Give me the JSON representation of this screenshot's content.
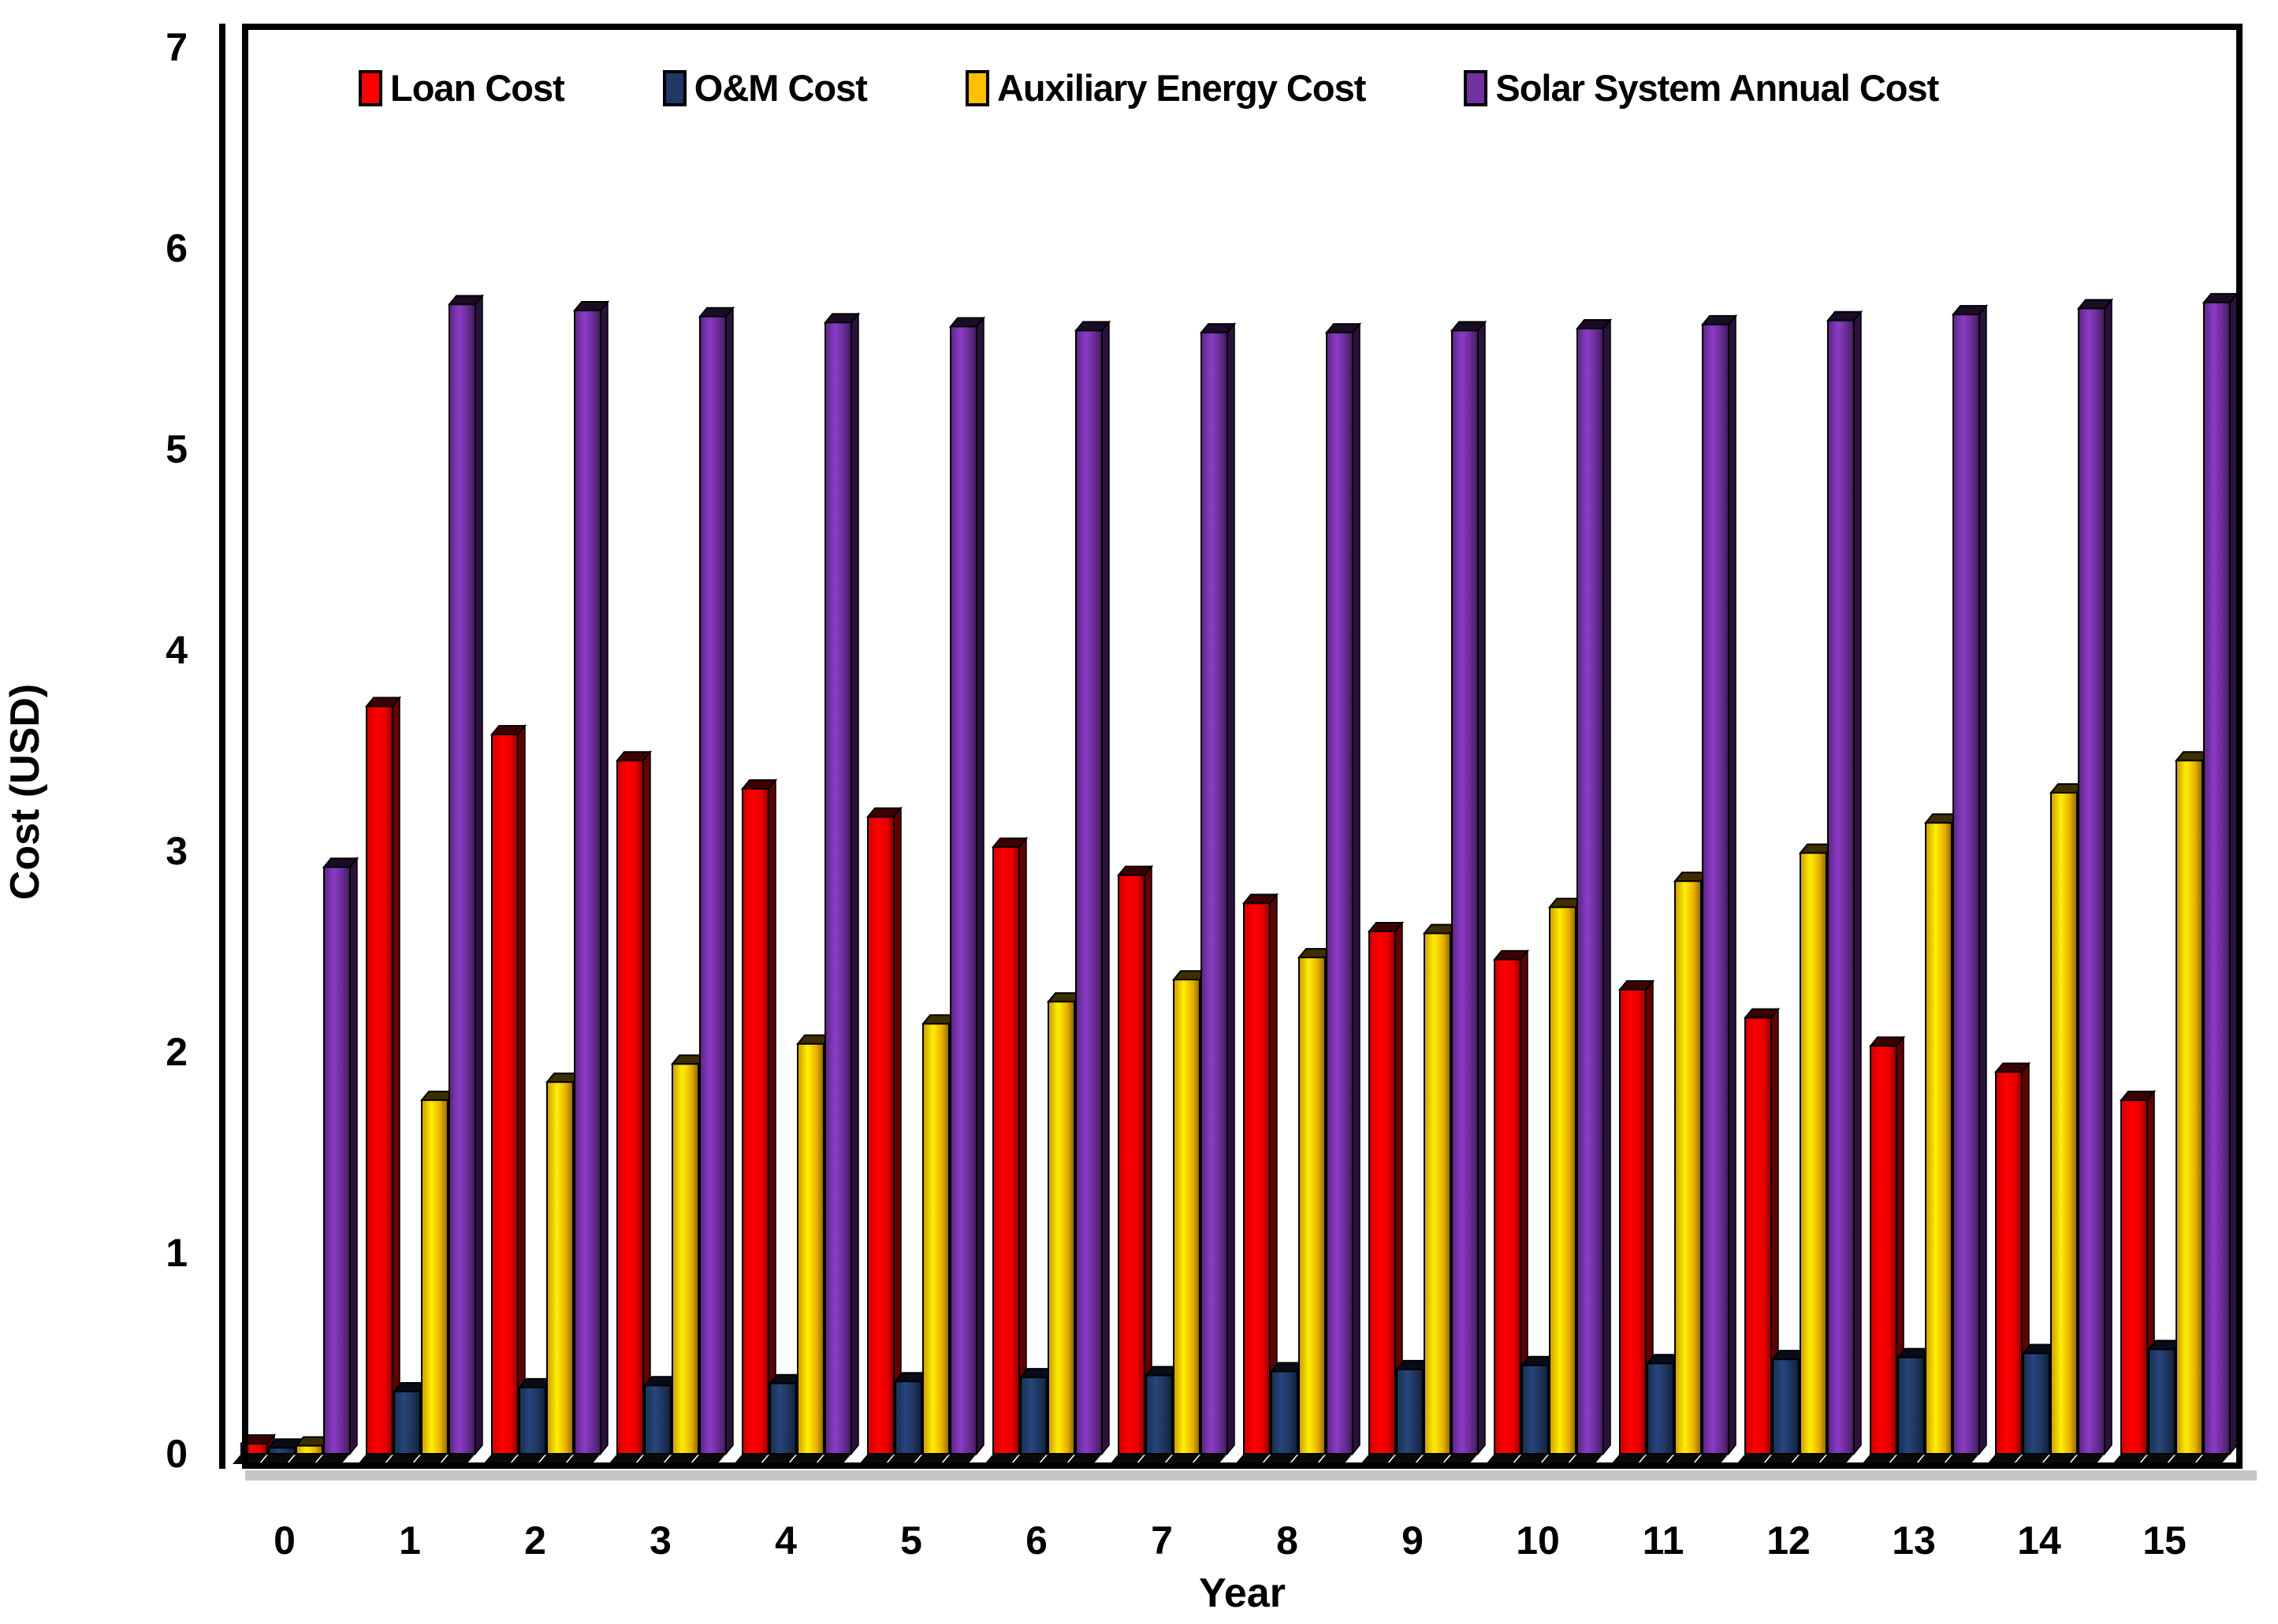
{
  "chart_data": {
    "type": "bar",
    "title": "",
    "xlabel": "Year",
    "ylabel": "Cost (USD)",
    "ylim": [
      0,
      7
    ],
    "ytick_labels": [
      "0",
      "1",
      "2",
      "3",
      "4",
      "5",
      "6",
      "7"
    ],
    "grid": false,
    "legend_position": "top-inside",
    "background": "#ffffff",
    "axis_color": "#000000",
    "categories": [
      "0",
      "1",
      "2",
      "3",
      "4",
      "5",
      "6",
      "7",
      "8",
      "9",
      "10",
      "11",
      "12",
      "13",
      "14",
      "15"
    ],
    "series": [
      {
        "name": "Loan Cost",
        "color": "#FF0000",
        "values": [
          0.05,
          3.72,
          3.58,
          3.45,
          3.31,
          3.17,
          3.02,
          2.88,
          2.74,
          2.6,
          2.46,
          2.31,
          2.17,
          2.03,
          1.9,
          1.76
        ]
      },
      {
        "name": "O&M Cost",
        "color": "#1F3864",
        "values": [
          0.03,
          0.31,
          0.33,
          0.34,
          0.35,
          0.36,
          0.38,
          0.39,
          0.41,
          0.42,
          0.44,
          0.45,
          0.47,
          0.48,
          0.5,
          0.52
        ]
      },
      {
        "name": "Auxiliary Energy Cost",
        "color": "#FFC000",
        "values": [
          0.04,
          1.76,
          1.85,
          1.94,
          2.04,
          2.14,
          2.25,
          2.36,
          2.47,
          2.59,
          2.72,
          2.85,
          2.99,
          3.14,
          3.29,
          3.45
        ]
      },
      {
        "name": "Solar System Annual Cost",
        "color": "#7030A0",
        "values": [
          2.92,
          5.72,
          5.69,
          5.66,
          5.63,
          5.61,
          5.59,
          5.58,
          5.58,
          5.59,
          5.6,
          5.62,
          5.64,
          5.67,
          5.7,
          5.73
        ]
      }
    ]
  }
}
